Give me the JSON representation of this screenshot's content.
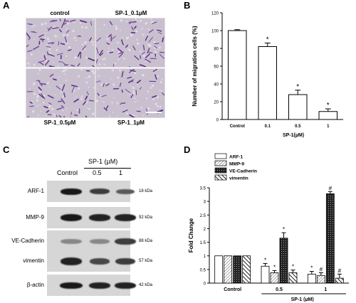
{
  "panels": {
    "A": {
      "label": "A",
      "images": [
        {
          "title": "control"
        },
        {
          "title": "SP-1_0.1µM"
        },
        {
          "title": "SP-1_0.5µM"
        },
        {
          "title": "SP-1_1µM"
        }
      ]
    },
    "B": {
      "label": "B"
    },
    "C": {
      "label": "C",
      "treatment_header": "SP-1 (µM)",
      "lanes": [
        "Control",
        "0.5",
        "1"
      ],
      "blots": [
        {
          "name": "ARF-1",
          "kda": "18 kDa"
        },
        {
          "name": "MMP-9",
          "kda": "92 kDa"
        },
        {
          "name": "VE-Cadherin",
          "kda": "88 kDa"
        },
        {
          "name": "vimentin",
          "kda": "57 kDa"
        },
        {
          "name": "β-actin",
          "kda": "42 kDa"
        }
      ]
    },
    "D": {
      "label": "D"
    }
  },
  "chart_data": [
    {
      "type": "bar",
      "categories": [
        "Control",
        "0.1",
        "0.5",
        "1"
      ],
      "values": [
        100,
        82,
        28,
        9
      ],
      "errors": [
        1,
        4,
        5,
        3
      ],
      "significance": [
        "",
        "*",
        "*",
        "*"
      ],
      "ylabel": "Number of migration cells (%)",
      "xlabel": "SP-1(µM)",
      "ylim": [
        0,
        120
      ],
      "yticks": [
        "0",
        "20",
        "40",
        "60",
        "80",
        "100",
        "120"
      ],
      "bar_color": "#ffffff"
    },
    {
      "type": "bar",
      "groups": [
        "Control",
        "0.5",
        "1"
      ],
      "series": [
        {
          "name": "ARF-1",
          "pattern": "white",
          "values": [
            1.0,
            0.62,
            0.33
          ],
          "errors": [
            0,
            0.1,
            0.1
          ],
          "significance": [
            "",
            "*",
            "*"
          ]
        },
        {
          "name": "MMP-9",
          "pattern": "light-hatch",
          "values": [
            1.0,
            0.38,
            0.28
          ],
          "errors": [
            0,
            0.08,
            0.1
          ],
          "significance": [
            "",
            "*",
            "#"
          ]
        },
        {
          "name": "VE-Cadherin",
          "pattern": "dark-cross",
          "values": [
            1.0,
            1.65,
            3.28
          ],
          "errors": [
            0,
            0.2,
            0.08
          ],
          "significance": [
            "",
            "*",
            "#"
          ]
        },
        {
          "name": "vimentin",
          "pattern": "diagonal",
          "values": [
            1.0,
            0.38,
            0.18
          ],
          "errors": [
            0,
            0.1,
            0.15
          ],
          "significance": [
            "",
            "*",
            "#"
          ]
        }
      ],
      "ylabel": "Fold Change",
      "xlabel": "SP-1 (µM)",
      "ylim": [
        0,
        3.5
      ],
      "yticks": [
        "0",
        "0.5",
        "1",
        "1.5",
        "2",
        "2.5",
        "3",
        "3.5"
      ]
    }
  ]
}
